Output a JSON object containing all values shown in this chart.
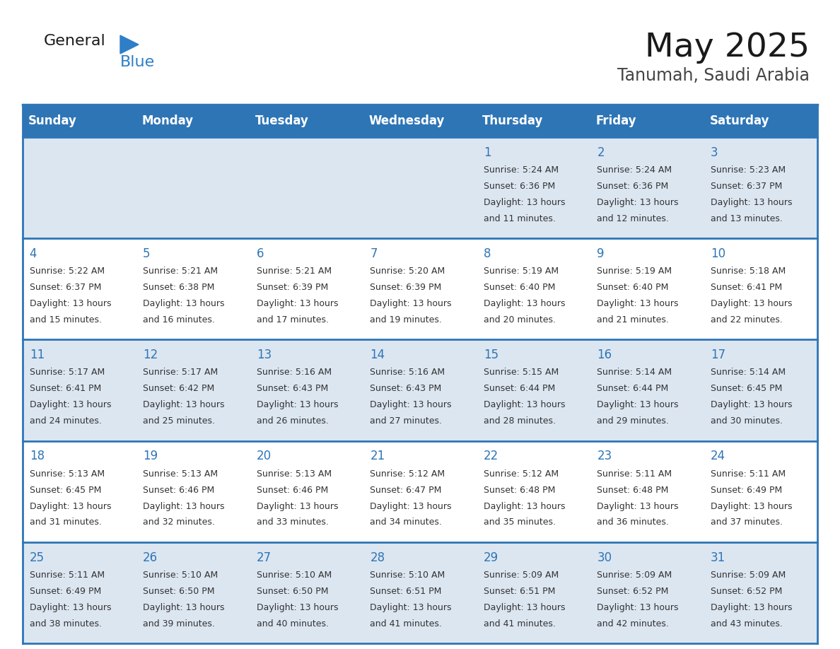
{
  "title": "May 2025",
  "subtitle": "Tanumah, Saudi Arabia",
  "days_of_week": [
    "Sunday",
    "Monday",
    "Tuesday",
    "Wednesday",
    "Thursday",
    "Friday",
    "Saturday"
  ],
  "header_bg": "#2E75B6",
  "header_text": "#FFFFFF",
  "row_odd_bg": "#DCE6F1",
  "row_even_bg": "#FFFFFF",
  "border_color": "#2E75B6",
  "day_number_color": "#2E75B6",
  "cell_text_color": "#333333",
  "logo_black": "#1a1a1a",
  "logo_blue": "#2E7EC8",
  "calendar_data": [
    [
      null,
      null,
      null,
      null,
      {
        "day": 1,
        "sunrise": "5:24 AM",
        "sunset": "6:36 PM",
        "daylight": "13 hours and 11 minutes."
      },
      {
        "day": 2,
        "sunrise": "5:24 AM",
        "sunset": "6:36 PM",
        "daylight": "13 hours and 12 minutes."
      },
      {
        "day": 3,
        "sunrise": "5:23 AM",
        "sunset": "6:37 PM",
        "daylight": "13 hours and 13 minutes."
      }
    ],
    [
      {
        "day": 4,
        "sunrise": "5:22 AM",
        "sunset": "6:37 PM",
        "daylight": "13 hours and 15 minutes."
      },
      {
        "day": 5,
        "sunrise": "5:21 AM",
        "sunset": "6:38 PM",
        "daylight": "13 hours and 16 minutes."
      },
      {
        "day": 6,
        "sunrise": "5:21 AM",
        "sunset": "6:39 PM",
        "daylight": "13 hours and 17 minutes."
      },
      {
        "day": 7,
        "sunrise": "5:20 AM",
        "sunset": "6:39 PM",
        "daylight": "13 hours and 19 minutes."
      },
      {
        "day": 8,
        "sunrise": "5:19 AM",
        "sunset": "6:40 PM",
        "daylight": "13 hours and 20 minutes."
      },
      {
        "day": 9,
        "sunrise": "5:19 AM",
        "sunset": "6:40 PM",
        "daylight": "13 hours and 21 minutes."
      },
      {
        "day": 10,
        "sunrise": "5:18 AM",
        "sunset": "6:41 PM",
        "daylight": "13 hours and 22 minutes."
      }
    ],
    [
      {
        "day": 11,
        "sunrise": "5:17 AM",
        "sunset": "6:41 PM",
        "daylight": "13 hours and 24 minutes."
      },
      {
        "day": 12,
        "sunrise": "5:17 AM",
        "sunset": "6:42 PM",
        "daylight": "13 hours and 25 minutes."
      },
      {
        "day": 13,
        "sunrise": "5:16 AM",
        "sunset": "6:43 PM",
        "daylight": "13 hours and 26 minutes."
      },
      {
        "day": 14,
        "sunrise": "5:16 AM",
        "sunset": "6:43 PM",
        "daylight": "13 hours and 27 minutes."
      },
      {
        "day": 15,
        "sunrise": "5:15 AM",
        "sunset": "6:44 PM",
        "daylight": "13 hours and 28 minutes."
      },
      {
        "day": 16,
        "sunrise": "5:14 AM",
        "sunset": "6:44 PM",
        "daylight": "13 hours and 29 minutes."
      },
      {
        "day": 17,
        "sunrise": "5:14 AM",
        "sunset": "6:45 PM",
        "daylight": "13 hours and 30 minutes."
      }
    ],
    [
      {
        "day": 18,
        "sunrise": "5:13 AM",
        "sunset": "6:45 PM",
        "daylight": "13 hours and 31 minutes."
      },
      {
        "day": 19,
        "sunrise": "5:13 AM",
        "sunset": "6:46 PM",
        "daylight": "13 hours and 32 minutes."
      },
      {
        "day": 20,
        "sunrise": "5:13 AM",
        "sunset": "6:46 PM",
        "daylight": "13 hours and 33 minutes."
      },
      {
        "day": 21,
        "sunrise": "5:12 AM",
        "sunset": "6:47 PM",
        "daylight": "13 hours and 34 minutes."
      },
      {
        "day": 22,
        "sunrise": "5:12 AM",
        "sunset": "6:48 PM",
        "daylight": "13 hours and 35 minutes."
      },
      {
        "day": 23,
        "sunrise": "5:11 AM",
        "sunset": "6:48 PM",
        "daylight": "13 hours and 36 minutes."
      },
      {
        "day": 24,
        "sunrise": "5:11 AM",
        "sunset": "6:49 PM",
        "daylight": "13 hours and 37 minutes."
      }
    ],
    [
      {
        "day": 25,
        "sunrise": "5:11 AM",
        "sunset": "6:49 PM",
        "daylight": "13 hours and 38 minutes."
      },
      {
        "day": 26,
        "sunrise": "5:10 AM",
        "sunset": "6:50 PM",
        "daylight": "13 hours and 39 minutes."
      },
      {
        "day": 27,
        "sunrise": "5:10 AM",
        "sunset": "6:50 PM",
        "daylight": "13 hours and 40 minutes."
      },
      {
        "day": 28,
        "sunrise": "5:10 AM",
        "sunset": "6:51 PM",
        "daylight": "13 hours and 41 minutes."
      },
      {
        "day": 29,
        "sunrise": "5:09 AM",
        "sunset": "6:51 PM",
        "daylight": "13 hours and 41 minutes."
      },
      {
        "day": 30,
        "sunrise": "5:09 AM",
        "sunset": "6:52 PM",
        "daylight": "13 hours and 42 minutes."
      },
      {
        "day": 31,
        "sunrise": "5:09 AM",
        "sunset": "6:52 PM",
        "daylight": "13 hours and 43 minutes."
      }
    ]
  ]
}
